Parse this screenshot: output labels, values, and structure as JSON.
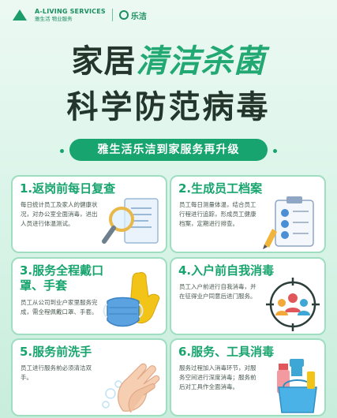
{
  "header": {
    "logo_en": "A-LIVING SERVICES",
    "logo_cn": "雅生活 物业服务",
    "brand2": "乐洁"
  },
  "title": {
    "line1_a": "家居",
    "line1_b": "清洁杀菌",
    "line2": "科学防范病毒"
  },
  "subtitle": "雅生活乐洁到家服务再升级",
  "cards": [
    {
      "title": "1.返岗前每日复查",
      "desc": "每日统计员工及家人的健康状况，对办公室全面消毒，进出人员进行体温测试。"
    },
    {
      "title": "2.生成员工档案",
      "desc": "员工每日测量体温，结合员工行程进行追踪，形成员工健康档案，定期进行排查。"
    },
    {
      "title": "3.服务全程戴口罩、手套",
      "desc": "员工从公司到业户家里服务完成，需全程佩戴口罩、手套。"
    },
    {
      "title": "4.入户前自我消毒",
      "desc": "员工入户前进行自我消毒，并在征得业户同意后进门服务。"
    },
    {
      "title": "5.服务前洗手",
      "desc": "员工进行服务前必须清洁双手。"
    },
    {
      "title": "6.服务、工具消毒",
      "desc": "服务过程加入消毒环节，对服务空间进行深度消毒；服务前后对工具作全面消毒。"
    }
  ],
  "icons": [
    "magnifier-document-icon",
    "employee-profile-icon",
    "mask-gloves-icon",
    "disinfect-target-icon",
    "handwash-icon",
    "cleaning-tools-icon"
  ],
  "colors": {
    "accent": "#17a46e",
    "title": "#24352c",
    "card_border": "#9fdec0"
  }
}
